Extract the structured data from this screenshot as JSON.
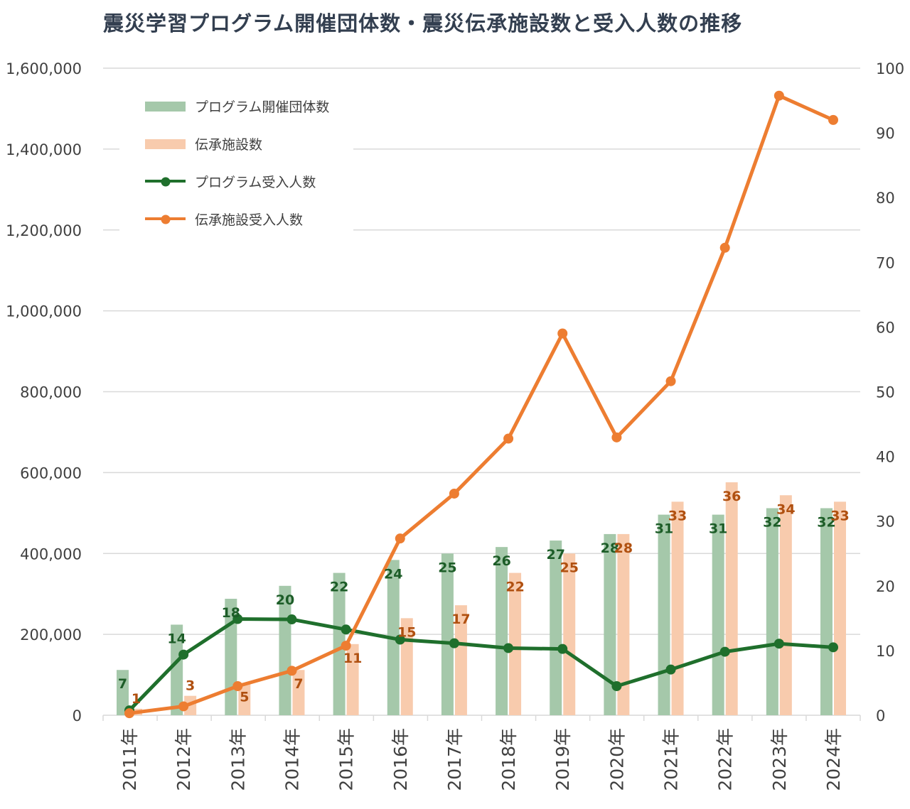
{
  "chart_data": {
    "type": "combo-bar-line",
    "title": "震災学習プログラム開催団体数・震災伝承施設数と受入人数の推移",
    "categories": [
      "2011年",
      "2012年",
      "2013年",
      "2014年",
      "2015年",
      "2016年",
      "2017年",
      "2018年",
      "2019年",
      "2020年",
      "2021年",
      "2022年",
      "2023年",
      "2024年"
    ],
    "bar_series": [
      {
        "name": "プログラム開催団体数",
        "axis": "right",
        "color": "#a5c8aa",
        "label_color": "#1d5d28",
        "values": [
          7,
          14,
          18,
          20,
          22,
          24,
          25,
          26,
          27,
          28,
          31,
          31,
          32,
          32
        ]
      },
      {
        "name": "伝承施設数",
        "axis": "right",
        "color": "#f8cbad",
        "label_color": "#b05010",
        "values": [
          1,
          3,
          5,
          7,
          11,
          15,
          17,
          22,
          25,
          28,
          33,
          36,
          34,
          33
        ]
      }
    ],
    "line_series": [
      {
        "name": "プログラム受入人数",
        "axis": "left",
        "color": "#1f6f2c",
        "values": [
          12000,
          150000,
          238000,
          237000,
          212000,
          187000,
          178000,
          166000,
          164000,
          72000,
          113000,
          157000,
          177000,
          168000
        ]
      },
      {
        "name": "伝承施設受入人数",
        "axis": "left",
        "color": "#ed7d31",
        "values": [
          5000,
          22000,
          72000,
          110000,
          172000,
          437000,
          548000,
          684000,
          944000,
          687000,
          826000,
          1156000,
          1532000,
          1472000
        ]
      }
    ],
    "left_axis": {
      "min": 0,
      "max": 1600000,
      "step": 200000,
      "ticks": [
        "0",
        "200,000",
        "400,000",
        "600,000",
        "800,000",
        "1,000,000",
        "1,200,000",
        "1,400,000",
        "1,600,000"
      ]
    },
    "right_axis": {
      "min": 0,
      "max": 100,
      "step": 10,
      "ticks": [
        "0",
        "10",
        "20",
        "30",
        "40",
        "50",
        "60",
        "70",
        "80",
        "90",
        "100"
      ]
    },
    "grid": "horizontal",
    "legend_position": "top-left-inside",
    "colors": {
      "grid": "#d9d9d9",
      "axis_text": "#404040",
      "title": "#333f50",
      "background": "#ffffff"
    }
  }
}
